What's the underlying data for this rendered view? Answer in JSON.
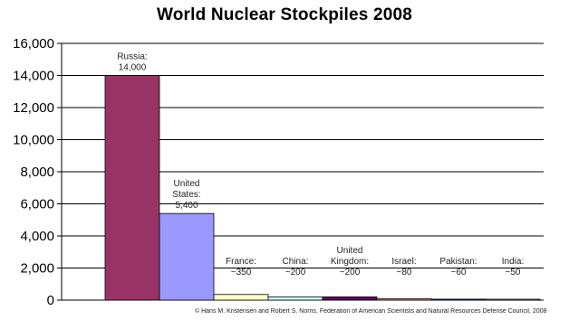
{
  "chart_data": {
    "type": "bar",
    "title": "World Nuclear Stockpiles 2008",
    "xlabel": "",
    "ylabel": "",
    "ylim": [
      0,
      16000
    ],
    "yticks": [
      "0",
      "2,000",
      "4,000",
      "6,000",
      "8,000",
      "10,000",
      "12,000",
      "14,000",
      "16,000"
    ],
    "ytick_values": [
      0,
      2000,
      4000,
      6000,
      8000,
      10000,
      12000,
      14000,
      16000
    ],
    "grid": true,
    "categories": [
      "Russia",
      "United States",
      "France",
      "China",
      "United Kingdom",
      "Israel",
      "Pakistan",
      "India"
    ],
    "values": [
      14000,
      5400,
      350,
      200,
      200,
      80,
      60,
      50
    ],
    "data_labels": [
      [
        "Russia:",
        "14,000"
      ],
      [
        "United",
        "States:",
        "5,400"
      ],
      [
        "France:",
        "~350"
      ],
      [
        "China:",
        "~200"
      ],
      [
        "United",
        "Kingdom:",
        "~200"
      ],
      [
        "Israel:",
        "~80"
      ],
      [
        "Pakistan:",
        "~60"
      ],
      [
        "India:",
        "~50"
      ]
    ],
    "colors": [
      "#993366",
      "#9999ff",
      "#ffffcc",
      "#ccffff",
      "#660066",
      "#ff8080",
      "#0066cc",
      "#ccccff"
    ],
    "credit": "© Hans M. Kristensen and Robert S. Norris, Federation of American Scientists and Natural Resources Defense Council, 2008"
  }
}
